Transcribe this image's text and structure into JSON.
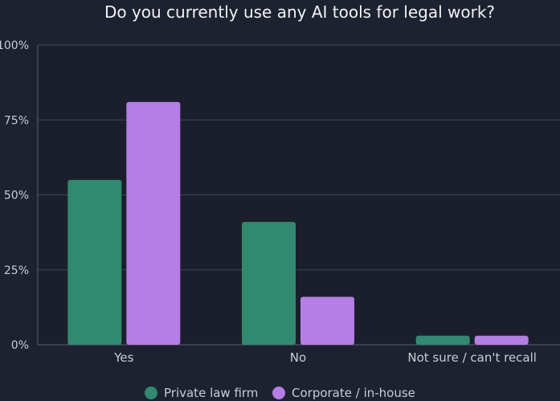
{
  "chart_data": {
    "type": "bar",
    "title": "Do you currently use any AI tools for legal work?",
    "categories": [
      "Yes",
      "No",
      "Not sure / can't recall"
    ],
    "series": [
      {
        "name": "Private law firm",
        "color": "#2f8a6e",
        "values": [
          55,
          41,
          3
        ]
      },
      {
        "name": "Corporate / in-house",
        "color": "#b57de6",
        "values": [
          81,
          16,
          3
        ]
      }
    ],
    "y_ticks": [
      "0%",
      "25%",
      "50%",
      "75%",
      "100%"
    ],
    "ylim": [
      0,
      100
    ],
    "grid": true,
    "legend_position": "bottom-center"
  }
}
